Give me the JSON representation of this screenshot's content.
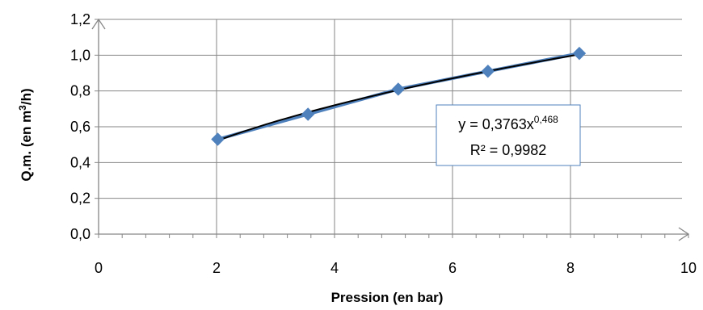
{
  "chart_data": {
    "type": "scatter",
    "xlabel": "Pression (en bar)",
    "ylabel_main": "Q.m. (en m",
    "ylabel_sup": "3",
    "ylabel_end": "/h)",
    "xlim": [
      0,
      10
    ],
    "ylim": [
      0,
      1.2
    ],
    "x_ticks": [
      "0",
      "2",
      "4",
      "6",
      "8",
      "10"
    ],
    "y_ticks": [
      "0,0",
      "0,2",
      "0,4",
      "0,6",
      "0,8",
      "1,0",
      "1,2"
    ],
    "grid": true,
    "series": [
      {
        "x": [
          2.02,
          3.55,
          5.08,
          6.6,
          8.15
        ],
        "y": [
          0.53,
          0.67,
          0.81,
          0.91,
          1.01
        ]
      }
    ],
    "trendline": {
      "type": "power",
      "coefficient": 0.3763,
      "exponent": 0.468,
      "equation_main": "y = 0,3763x",
      "equation_exp": "0,468",
      "r2_label": "R² = 0,9982"
    },
    "colors": {
      "marker": "#4F81BD",
      "series_line": "#4F81BD",
      "trendline": "#000000",
      "grid": "#868686",
      "axis": "#868686",
      "label_border": "#4F81BD"
    }
  }
}
